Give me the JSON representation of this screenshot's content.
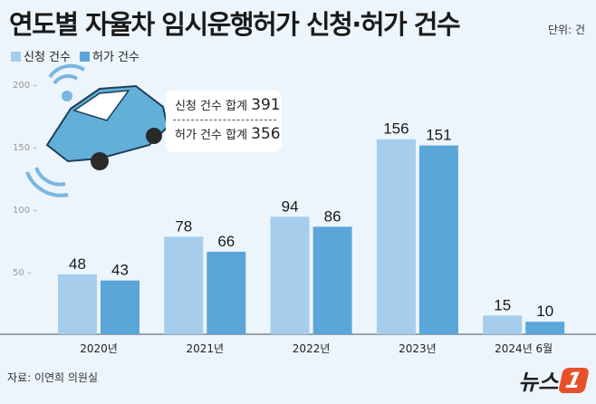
{
  "title": "연도별 자율차 임시운행허가 신청·허가 건수",
  "unit": "단위: 건",
  "source": "자료: 이연희 의원실",
  "logo": {
    "text": "뉴스",
    "mark": "1"
  },
  "callout": {
    "apply_label": "신청 건수 합계",
    "apply_total": "391",
    "permit_label": "허가 건수 합계",
    "permit_total": "356"
  },
  "colors": {
    "background": "#edf5fc",
    "apply": "#a6cdeb",
    "permit": "#5aa6d9"
  },
  "chart_data": {
    "type": "bar",
    "categories": [
      "2020년",
      "2021년",
      "2022년",
      "2023년",
      "2024년 6월"
    ],
    "series": [
      {
        "name": "신청 건수",
        "values": [
          48,
          78,
          94,
          156,
          15
        ]
      },
      {
        "name": "허가 건수",
        "values": [
          43,
          66,
          86,
          151,
          10
        ]
      }
    ],
    "yticks": [
      "50",
      "100",
      "150",
      "200"
    ],
    "ylim": [
      0,
      200
    ],
    "legend": "top-left",
    "grid": false
  }
}
